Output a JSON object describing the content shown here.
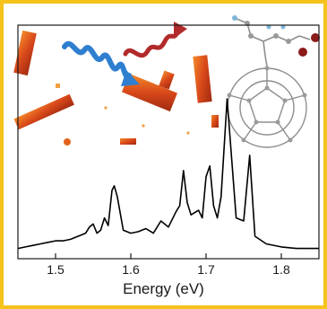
{
  "chart_data": {
    "type": "line",
    "xlabel": "Energy (eV)",
    "ylabel": "",
    "title": "",
    "xlim": [
      1.45,
      1.85
    ],
    "ylim": [
      0,
      1
    ],
    "xticks": [
      1.5,
      1.6,
      1.7,
      1.8
    ],
    "xtick_labels": [
      "1.5",
      "1.6",
      "1.7",
      "1.8"
    ],
    "grid": false,
    "legend": "none",
    "series": [
      {
        "line_color": "#000000",
        "x": [
          1.45,
          1.46,
          1.47,
          1.48,
          1.49,
          1.5,
          1.51,
          1.52,
          1.53,
          1.54,
          1.545,
          1.55,
          1.555,
          1.56,
          1.565,
          1.57,
          1.575,
          1.578,
          1.582,
          1.59,
          1.6,
          1.61,
          1.62,
          1.63,
          1.64,
          1.65,
          1.66,
          1.665,
          1.67,
          1.675,
          1.68,
          1.69,
          1.695,
          1.7,
          1.705,
          1.71,
          1.715,
          1.72,
          1.728,
          1.74,
          1.75,
          1.758,
          1.765,
          1.78,
          1.8,
          1.82,
          1.84,
          1.85
        ],
        "y": [
          0.02,
          0.03,
          0.04,
          0.05,
          0.06,
          0.07,
          0.07,
          0.08,
          0.1,
          0.12,
          0.16,
          0.18,
          0.12,
          0.14,
          0.22,
          0.17,
          0.4,
          0.43,
          0.36,
          0.14,
          0.12,
          0.13,
          0.15,
          0.12,
          0.2,
          0.16,
          0.26,
          0.3,
          0.53,
          0.32,
          0.24,
          0.27,
          0.22,
          0.49,
          0.56,
          0.3,
          0.22,
          0.36,
          1.0,
          0.22,
          0.2,
          0.63,
          0.1,
          0.05,
          0.03,
          0.02,
          0.02,
          0.02
        ]
      }
    ]
  },
  "colors": {
    "frame": "#f5c31c",
    "wave_blue": "#2f7fd0",
    "wave_red": "#b22a2a",
    "crystal": "#e2631b",
    "cage": "#8e8e8e"
  }
}
